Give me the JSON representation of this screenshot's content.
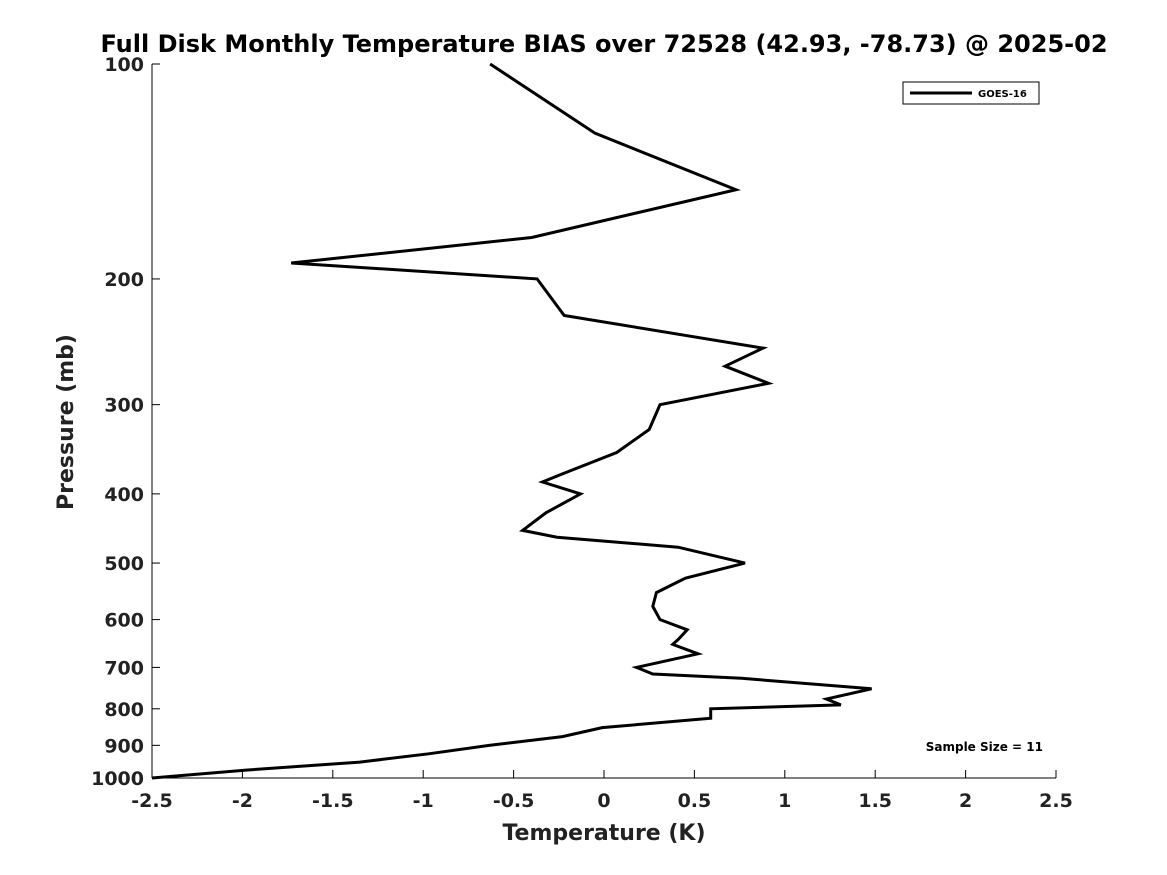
{
  "chart_data": {
    "type": "line",
    "title": "Full Disk Monthly Temperature BIAS over 72528 (42.93, -78.73) @ 2025-02",
    "xlabel": "Temperature (K)",
    "ylabel": "Pressure (mb)",
    "xlim": [
      -2.5,
      2.5
    ],
    "ylim": [
      1000,
      100
    ],
    "yscale": "log",
    "y_inverted": true,
    "grid": false,
    "legend_position": "top-right",
    "x_ticks": [
      -2.5,
      -2,
      -1.5,
      -1,
      -0.5,
      0,
      0.5,
      1,
      1.5,
      2,
      2.5
    ],
    "x_tick_labels": [
      "-2.5",
      "-2",
      "-1.5",
      "-1",
      "-0.5",
      "0",
      "0.5",
      "1",
      "1.5",
      "2",
      "2.5"
    ],
    "y_ticks": [
      100,
      200,
      300,
      400,
      500,
      600,
      700,
      800,
      900,
      1000
    ],
    "y_tick_labels": [
      "100",
      "200",
      "300",
      "400",
      "500",
      "600",
      "700",
      "800",
      "900",
      "1000"
    ],
    "series": [
      {
        "name": "GOES-16",
        "color": "#000000",
        "points": [
          [
            -0.63,
            100
          ],
          [
            -0.05,
            125
          ],
          [
            0.73,
            150
          ],
          [
            -0.4,
            175
          ],
          [
            -1.73,
            190
          ],
          [
            -0.37,
            200
          ],
          [
            -0.22,
            225
          ],
          [
            0.88,
            250
          ],
          [
            0.67,
            265
          ],
          [
            0.91,
            280
          ],
          [
            0.31,
            300
          ],
          [
            0.25,
            325
          ],
          [
            0.07,
            350
          ],
          [
            -0.23,
            375
          ],
          [
            -0.34,
            385
          ],
          [
            -0.13,
            400
          ],
          [
            -0.32,
            425
          ],
          [
            -0.45,
            450
          ],
          [
            -0.26,
            460
          ],
          [
            0.41,
            475
          ],
          [
            0.78,
            500
          ],
          [
            0.45,
            525
          ],
          [
            0.29,
            550
          ],
          [
            0.27,
            575
          ],
          [
            0.31,
            600
          ],
          [
            0.46,
            620
          ],
          [
            0.41,
            640
          ],
          [
            0.38,
            650
          ],
          [
            0.52,
            670
          ],
          [
            0.18,
            700
          ],
          [
            0.27,
            715
          ],
          [
            0.76,
            725
          ],
          [
            1.48,
            750
          ],
          [
            1.23,
            775
          ],
          [
            1.31,
            790
          ],
          [
            0.59,
            800
          ],
          [
            0.59,
            825
          ],
          [
            -0.01,
            850
          ],
          [
            -0.23,
            875
          ],
          [
            -0.63,
            900
          ],
          [
            -0.97,
            925
          ],
          [
            -1.35,
            950
          ],
          [
            -1.98,
            975
          ],
          [
            -2.5,
            1000
          ]
        ]
      }
    ],
    "annotations": [
      {
        "text": "Sample Size = 11"
      }
    ]
  }
}
